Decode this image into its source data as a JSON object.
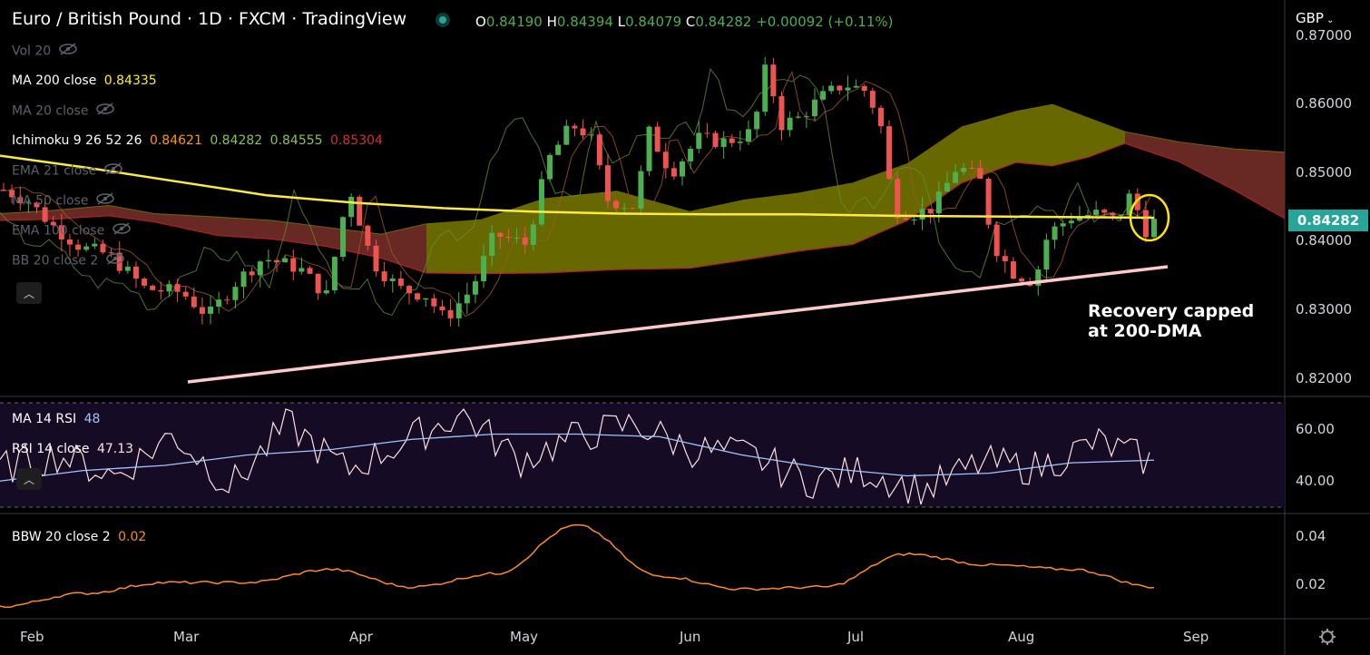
{
  "header": {
    "symbol": "Euro / British Pound",
    "sep1": "·",
    "interval": "1D",
    "sep2": "·",
    "exchange": "FXCM",
    "sep3": "·",
    "brand": "TradingView",
    "ohlc": {
      "o_label": "O",
      "o": "0.84190",
      "h_label": "H",
      "h": "0.84394",
      "l_label": "L",
      "l": "0.84079",
      "c_label": "C",
      "c": "0.84282",
      "chg": "+0.00092 (+0.11%)"
    },
    "currency": "GBP"
  },
  "indicators": {
    "vol": "Vol 20",
    "ma200_label": "MA 200 close",
    "ma200_value": "0.84335",
    "ma20": "MA 20 close",
    "ichimoku_label": "Ichimoku 9 26 52 26",
    "ichimoku_v1": "0.84621",
    "ichimoku_v2": "0.84282",
    "ichimoku_v3": "0.84555",
    "ichimoku_v4": "0.85304",
    "ema21": "EMA 21 close",
    "ma50": "MA 50 close",
    "ema100": "EMA 100 close",
    "bb": "BB 20 close 2",
    "rsi_ma_label": "MA 14 RSI",
    "rsi_ma_value": "48",
    "rsi_label": "RSI 14 close",
    "rsi_value": "47.13",
    "bbw_label": "BBW 20 close 2",
    "bbw_value": "0.02"
  },
  "last_price": "0.84282",
  "annotation": [
    "Recovery capped",
    "at 200-DMA"
  ],
  "price_axis_labels": [
    "0.87000",
    "0.86000",
    "0.85000",
    "0.84000",
    "0.83000",
    "0.82000"
  ],
  "rsi_axis_labels": [
    "60.00",
    "40.00"
  ],
  "bbw_axis_labels": [
    "0.04",
    "0.02"
  ],
  "time_axis_labels": [
    "Feb",
    "Mar",
    "Apr",
    "May",
    "Jun",
    "Jul",
    "Aug",
    "Sep"
  ],
  "colors": {
    "up": "#4caf50",
    "down": "#ef5350",
    "ma200": "#ffeb3b",
    "cloud_bull": "#7a7a00",
    "cloud_bear": "#7a2f2a",
    "rsi": "#ffe0e0",
    "rsi_ma": "#9ec5ff",
    "rsi_bg": "#160b24",
    "bbw": "#ff8a1f",
    "trendline": "#ffc9c9",
    "last_price": "#26a69a"
  },
  "chart_data": {
    "type": "candlestick",
    "series": [
      {
        "name": "MA 200 close",
        "values": [
          0.8525,
          0.8507,
          0.8487,
          0.8467,
          0.8456,
          0.8448,
          0.8443,
          0.844,
          0.8439,
          0.8439,
          0.8437,
          0.8436,
          0.8435,
          0.8434
        ]
      },
      {
        "name": "RSI 14 close",
        "values": [
          45,
          50,
          42,
          58,
          38,
          62,
          44,
          55,
          66,
          48,
          57,
          62,
          52,
          50,
          40,
          44,
          36,
          47,
          45,
          55,
          47
        ]
      },
      {
        "name": "MA 14 RSI",
        "values": [
          40,
          44,
          46,
          50,
          52,
          56,
          58,
          58,
          57,
          50,
          45,
          42,
          43,
          47,
          48
        ]
      },
      {
        "name": "BBW 20 close 2",
        "values": [
          0.008,
          0.014,
          0.019,
          0.019,
          0.025,
          0.017,
          0.023,
          0.045,
          0.022,
          0.016,
          0.017,
          0.032,
          0.027,
          0.025,
          0.017
        ]
      }
    ],
    "price_ylim": [
      0.818,
      0.871
    ],
    "rsi_ylim": [
      30,
      70
    ],
    "bbw_ylim": [
      0.005,
      0.048
    ],
    "last_close": 0.84282,
    "grid": false
  }
}
